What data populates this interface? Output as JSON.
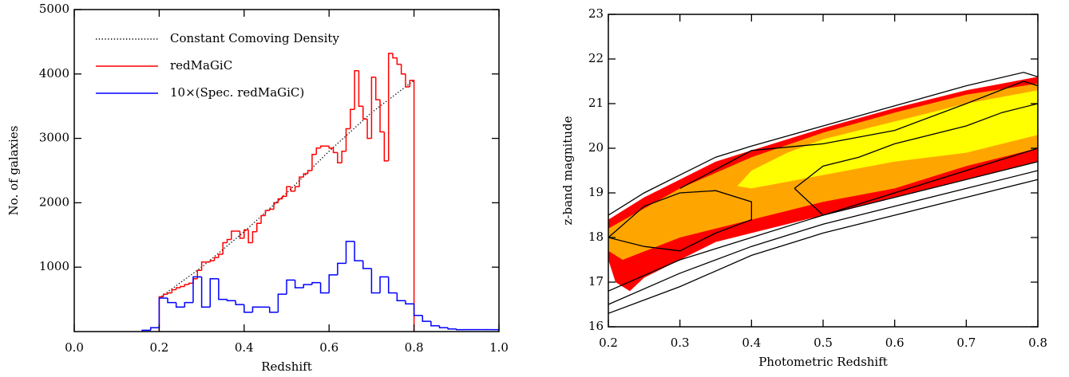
{
  "chart_data": [
    {
      "type": "histogram",
      "xlabel": "Redshift",
      "ylabel": "No. of galaxies",
      "xlim": [
        0,
        1
      ],
      "ylim": [
        0,
        5000
      ],
      "xticks": [
        {
          "value": 0,
          "label": "0.0"
        },
        0.2,
        0.4,
        0.6,
        0.8,
        {
          "value": 1,
          "label": "1.0"
        }
      ],
      "yticks": [
        1000,
        2000,
        3000,
        4000,
        5000
      ],
      "legend": "upper left",
      "series": [
        {
          "name": "Constant Comoving Density",
          "color": "#000000",
          "dash": "dotted",
          "x": [
            0.2,
            0.3,
            0.4,
            0.5,
            0.6,
            0.7,
            0.8
          ],
          "values": [
            520,
            1000,
            1550,
            2150,
            2800,
            3400,
            3900
          ]
        },
        {
          "name": "redMaGiC",
          "color": "#ff0000",
          "bins": [
            0.2,
            0.21,
            0.22,
            0.23,
            0.24,
            0.25,
            0.26,
            0.27,
            0.28,
            0.29,
            0.3,
            0.31,
            0.32,
            0.33,
            0.34,
            0.35,
            0.36,
            0.37,
            0.38,
            0.39,
            0.4,
            0.41,
            0.42,
            0.43,
            0.44,
            0.45,
            0.46,
            0.47,
            0.48,
            0.49,
            0.5,
            0.51,
            0.52,
            0.53,
            0.54,
            0.55,
            0.56,
            0.57,
            0.58,
            0.59,
            0.6,
            0.61,
            0.62,
            0.63,
            0.64,
            0.65,
            0.66,
            0.67,
            0.68,
            0.69,
            0.7,
            0.71,
            0.72,
            0.73,
            0.74,
            0.75,
            0.76,
            0.77,
            0.78,
            0.79,
            0.8
          ],
          "values": [
            540,
            580,
            600,
            650,
            680,
            700,
            730,
            750,
            820,
            950,
            1080,
            1080,
            1100,
            1150,
            1200,
            1380,
            1430,
            1560,
            1560,
            1450,
            1580,
            1380,
            1550,
            1680,
            1800,
            1880,
            1900,
            2000,
            2060,
            2100,
            2250,
            2180,
            2250,
            2400,
            2450,
            2500,
            2750,
            2850,
            2880,
            2880,
            2850,
            2780,
            2620,
            2800,
            3150,
            3450,
            4050,
            3500,
            3300,
            3000,
            3950,
            3600,
            3100,
            2650,
            4320,
            4250,
            4150,
            4000,
            3800,
            3900
          ]
        },
        {
          "name": "10×(Spec. redMaGiC)",
          "color": "#0000ff",
          "bins": [
            0.16,
            0.18,
            0.2,
            0.22,
            0.24,
            0.26,
            0.28,
            0.3,
            0.32,
            0.34,
            0.36,
            0.38,
            0.4,
            0.42,
            0.44,
            0.46,
            0.48,
            0.5,
            0.52,
            0.54,
            0.56,
            0.58,
            0.6,
            0.62,
            0.64,
            0.66,
            0.68,
            0.7,
            0.72,
            0.74,
            0.76,
            0.78,
            0.8,
            0.82,
            0.84,
            0.86,
            0.88,
            0.9,
            0.92,
            0.94,
            0.96,
            0.98,
            1.0
          ],
          "values": [
            20,
            60,
            520,
            450,
            380,
            450,
            850,
            380,
            820,
            500,
            480,
            420,
            300,
            380,
            380,
            300,
            580,
            800,
            680,
            730,
            760,
            600,
            880,
            1060,
            1400,
            1100,
            980,
            600,
            850,
            600,
            480,
            430,
            250,
            160,
            90,
            60,
            40,
            30,
            30,
            30,
            30,
            30
          ]
        }
      ]
    },
    {
      "type": "contour",
      "xlabel": "Photometric Redshift",
      "ylabel": "z-band magnitude",
      "xlim": [
        0.2,
        0.8
      ],
      "ylim": [
        16,
        23
      ],
      "xticks": [
        0.2,
        0.3,
        0.4,
        0.5,
        0.6,
        0.7,
        0.8
      ],
      "yticks": [
        16,
        17,
        18,
        19,
        20,
        21,
        22,
        23
      ],
      "series": [
        {
          "color": "#ff0000",
          "fill": true,
          "x": [
            0.2,
            0.25,
            0.3,
            0.35,
            0.4,
            0.5,
            0.6,
            0.7,
            0.8,
            0.8,
            0.7,
            0.6,
            0.5,
            0.4,
            0.35,
            0.3,
            0.25,
            0.23,
            0.21,
            0.2
          ],
          "values": [
            18.4,
            18.9,
            19.3,
            19.7,
            19.95,
            20.45,
            20.9,
            21.3,
            21.6,
            19.7,
            19.3,
            18.9,
            18.5,
            18.1,
            17.9,
            17.5,
            17.1,
            16.8,
            17.0,
            17.5
          ]
        },
        {
          "color": "#ffa500",
          "fill": true,
          "x": [
            0.2,
            0.3,
            0.4,
            0.5,
            0.6,
            0.7,
            0.8,
            0.8,
            0.7,
            0.6,
            0.5,
            0.4,
            0.3,
            0.22,
            0.2
          ],
          "values": [
            18.2,
            19.1,
            19.8,
            20.35,
            20.8,
            21.2,
            21.45,
            20.0,
            19.6,
            19.1,
            18.8,
            18.4,
            18.0,
            17.5,
            17.7
          ]
        },
        {
          "color": "#ffff00",
          "fill": true,
          "x": [
            0.38,
            0.4,
            0.45,
            0.5,
            0.6,
            0.7,
            0.8,
            0.8,
            0.7,
            0.6,
            0.5,
            0.4
          ],
          "values": [
            19.15,
            19.5,
            19.9,
            20.2,
            20.6,
            21.0,
            21.3,
            20.3,
            19.9,
            19.7,
            19.4,
            19.1
          ]
        },
        {
          "color": "#000000",
          "fill": false,
          "x": [
            0.2,
            0.25,
            0.3,
            0.35,
            0.4,
            0.5,
            0.6,
            0.7,
            0.78,
            0.8
          ],
          "values": [
            18.5,
            19.0,
            19.4,
            19.8,
            20.05,
            20.5,
            20.95,
            21.4,
            21.7,
            21.6
          ]
        },
        {
          "color": "#000000",
          "fill": false,
          "x": [
            0.2,
            0.3,
            0.4,
            0.5,
            0.6,
            0.7,
            0.8
          ],
          "values": [
            16.3,
            16.9,
            17.6,
            18.1,
            18.5,
            18.9,
            19.3
          ]
        },
        {
          "color": "#000000",
          "fill": false,
          "x": [
            0.2,
            0.3,
            0.4,
            0.5,
            0.6,
            0.7,
            0.8
          ],
          "values": [
            16.5,
            17.2,
            17.8,
            18.3,
            18.7,
            19.1,
            19.5
          ]
        },
        {
          "color": "#000000",
          "fill": false,
          "x": [
            0.2,
            0.3,
            0.4,
            0.5,
            0.6,
            0.7,
            0.8
          ],
          "values": [
            16.8,
            17.5,
            18.0,
            18.5,
            18.9,
            19.3,
            19.7
          ]
        },
        {
          "color": "#000000",
          "fill": false,
          "x": [
            0.2,
            0.25,
            0.3,
            0.35,
            0.4,
            0.4,
            0.35,
            0.3,
            0.25,
            0.2
          ],
          "values": [
            18.0,
            18.7,
            19.0,
            19.05,
            18.8,
            18.4,
            18.1,
            17.7,
            17.8,
            18.0
          ]
        },
        {
          "color": "#000000",
          "fill": false,
          "x": [
            0.46,
            0.5,
            0.55,
            0.6,
            0.7,
            0.75,
            0.8,
            0.8,
            0.7,
            0.6,
            0.5,
            0.46
          ],
          "values": [
            19.1,
            19.6,
            19.8,
            20.1,
            20.5,
            20.8,
            21.0,
            20.0,
            19.5,
            19.0,
            18.5,
            19.1
          ]
        },
        {
          "color": "#000000",
          "fill": false,
          "x": [
            0.3,
            0.4,
            0.5,
            0.55,
            0.6,
            0.7,
            0.78,
            0.8
          ],
          "values": [
            19.1,
            19.95,
            20.1,
            20.25,
            20.4,
            21.0,
            21.5,
            21.4
          ]
        }
      ]
    }
  ]
}
